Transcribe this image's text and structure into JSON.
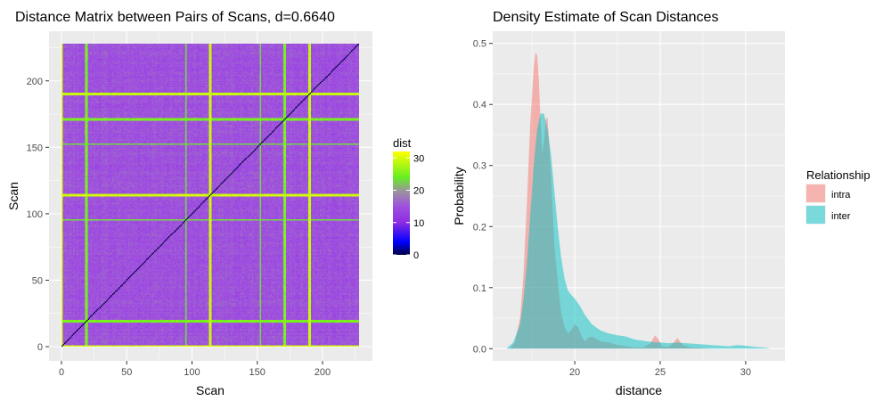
{
  "chart_data": [
    {
      "type": "heatmap",
      "title": "Distance Matrix between Pairs of Scans, d=0.6640",
      "xlabel": "Scan",
      "ylabel": "Scan",
      "n_scans": 228,
      "xlim": [
        0,
        228
      ],
      "ylim": [
        0,
        228
      ],
      "x_ticks": [
        0,
        50,
        100,
        150,
        200
      ],
      "y_ticks": [
        0,
        50,
        100,
        150,
        200
      ],
      "grid": true,
      "diagonal_value": 0,
      "typical_value": 15,
      "high_distance_scans": [
        {
          "scan": 1,
          "value": 30
        },
        {
          "scan": 19,
          "value": 25
        },
        {
          "scan": 20,
          "value": 25
        },
        {
          "scan": 96,
          "value": 23
        },
        {
          "scan": 114,
          "value": 30
        },
        {
          "scan": 115,
          "value": 29
        },
        {
          "scan": 153,
          "value": 23
        },
        {
          "scan": 171,
          "value": 25
        },
        {
          "scan": 172,
          "value": 25
        },
        {
          "scan": 190,
          "value": 29
        },
        {
          "scan": 191,
          "value": 29
        }
      ],
      "colorbar": {
        "title": "dist",
        "ticks": [
          0,
          10,
          20,
          30
        ],
        "min": 0,
        "max": 32,
        "stops": [
          {
            "value": 0,
            "color": "#000044"
          },
          {
            "value": 4,
            "color": "#0000ff"
          },
          {
            "value": 10,
            "color": "#8b2be2"
          },
          {
            "value": 15,
            "color": "#a050e0"
          },
          {
            "value": 20,
            "color": "#999999"
          },
          {
            "value": 24,
            "color": "#66ee22"
          },
          {
            "value": 32,
            "color": "#ffff00"
          }
        ]
      }
    },
    {
      "type": "area",
      "title": "Density Estimate of Scan Distances",
      "xlabel": "distance",
      "ylabel": "Probability",
      "xlim": [
        15.2,
        32.3
      ],
      "ylim": [
        -0.02,
        0.52
      ],
      "x_ticks": [
        20,
        25,
        30
      ],
      "y_ticks": [
        0.0,
        0.1,
        0.2,
        0.3,
        0.4,
        0.5
      ],
      "grid": true,
      "legend": {
        "title": "Relationship",
        "position": "right"
      },
      "series": [
        {
          "name": "intra",
          "color": "#f8766d",
          "x": [
            16.2,
            16.5,
            16.8,
            17.0,
            17.2,
            17.4,
            17.6,
            17.7,
            17.8,
            17.9,
            18.0,
            18.1,
            18.2,
            18.3,
            18.4,
            18.5,
            18.6,
            18.7,
            18.8,
            19.0,
            19.2,
            19.4,
            19.6,
            19.8,
            20.0,
            20.2,
            20.4,
            20.6,
            20.8,
            21.0,
            21.5,
            22.0,
            22.5,
            23.0,
            23.5,
            24.0,
            24.4,
            24.7,
            24.9,
            25.1,
            25.5,
            25.8,
            26.0,
            26.3,
            26.8,
            27.5,
            28.0
          ],
          "y": [
            0.0,
            0.01,
            0.05,
            0.12,
            0.24,
            0.37,
            0.46,
            0.485,
            0.48,
            0.44,
            0.37,
            0.32,
            0.34,
            0.375,
            0.38,
            0.34,
            0.29,
            0.23,
            0.17,
            0.11,
            0.06,
            0.035,
            0.025,
            0.03,
            0.04,
            0.035,
            0.02,
            0.012,
            0.018,
            0.02,
            0.012,
            0.01,
            0.006,
            0.004,
            0.002,
            0.002,
            0.008,
            0.022,
            0.015,
            0.004,
            0.003,
            0.01,
            0.018,
            0.006,
            0.002,
            0.001,
            0.0
          ]
        },
        {
          "name": "inter",
          "color": "#00bfc4",
          "x": [
            16.0,
            16.4,
            16.8,
            17.0,
            17.2,
            17.4,
            17.6,
            17.8,
            18.0,
            18.2,
            18.4,
            18.6,
            18.8,
            19.0,
            19.2,
            19.4,
            19.6,
            19.8,
            20.0,
            20.3,
            20.6,
            21.0,
            21.5,
            22.0,
            22.5,
            23.0,
            23.5,
            24.0,
            24.5,
            25.0,
            25.5,
            26.0,
            26.5,
            27.0,
            27.5,
            28.0,
            28.5,
            29.0,
            29.5,
            30.0,
            30.5,
            31.0,
            31.5
          ],
          "y": [
            0.0,
            0.01,
            0.04,
            0.08,
            0.14,
            0.22,
            0.3,
            0.36,
            0.385,
            0.385,
            0.36,
            0.32,
            0.26,
            0.2,
            0.15,
            0.115,
            0.095,
            0.088,
            0.082,
            0.07,
            0.055,
            0.04,
            0.03,
            0.025,
            0.022,
            0.02,
            0.015,
            0.013,
            0.011,
            0.01,
            0.009,
            0.01,
            0.009,
            0.008,
            0.007,
            0.006,
            0.005,
            0.004,
            0.006,
            0.005,
            0.003,
            0.002,
            0.0
          ]
        }
      ]
    }
  ]
}
